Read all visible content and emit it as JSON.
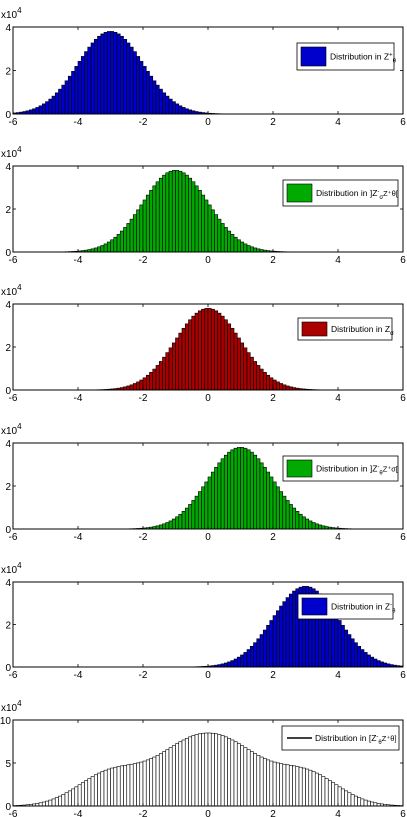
{
  "chart_data": [
    {
      "type": "bar",
      "xlim": [
        -6,
        6
      ],
      "ylim": [
        0,
        40000
      ],
      "x_ticks": [
        "-6",
        "-4",
        "-2",
        "0",
        "2",
        "4",
        "6"
      ],
      "y_ticks": [
        "0",
        "2",
        "4"
      ],
      "y_multiplier": {
        "base": "x10",
        "exponent": "4"
      },
      "legend": {
        "text": "Distribution in Z",
        "sub": "θ",
        "sup": "+",
        "suffix": "",
        "color": "#0000cc"
      },
      "legend_placement": "right",
      "bar_color": "#0000cc",
      "bin_width": 0.1,
      "distribution": {
        "shape": "normal",
        "mean": -3.0,
        "std": 1.0,
        "peak": 38000
      }
    },
    {
      "type": "bar",
      "xlim": [
        -6,
        6
      ],
      "ylim": [
        0,
        40000
      ],
      "x_ticks": [
        "-6",
        "-4",
        "-2",
        "0",
        "2",
        "4",
        "6"
      ],
      "y_ticks": [
        "0",
        "2",
        "4"
      ],
      "y_multiplier": {
        "base": "x10",
        "exponent": "4"
      },
      "legend": {
        "text": "Distribution in ]Z",
        "sub": "σ",
        "sup": "-",
        "suffix": "Z⁺θ[",
        "color": "#00aa00"
      },
      "legend_placement": "right",
      "bar_color": "#00aa00",
      "bin_width": 0.1,
      "distribution": {
        "shape": "normal",
        "mean": -1.0,
        "std": 1.0,
        "peak": 38000
      }
    },
    {
      "type": "bar",
      "xlim": [
        -6,
        6
      ],
      "ylim": [
        0,
        40000
      ],
      "x_ticks": [
        "-6",
        "-4",
        "-2",
        "0",
        "2",
        "4",
        "6"
      ],
      "y_ticks": [
        "0",
        "2",
        "4"
      ],
      "y_multiplier": {
        "base": "x10",
        "exponent": "4"
      },
      "legend": {
        "text": "Distribution in Z",
        "sub": "σ",
        "sup": "",
        "suffix": "",
        "color": "#aa0000"
      },
      "legend_placement": "right",
      "bar_color": "#aa0000",
      "bin_width": 0.1,
      "distribution": {
        "shape": "normal",
        "mean": 0.0,
        "std": 1.0,
        "peak": 38000
      }
    },
    {
      "type": "bar",
      "xlim": [
        -6,
        6
      ],
      "ylim": [
        0,
        40000
      ],
      "x_ticks": [
        "-6",
        "-4",
        "-2",
        "0",
        "2",
        "4",
        "6"
      ],
      "y_ticks": [
        "0",
        "2",
        "4"
      ],
      "y_multiplier": {
        "base": "x10",
        "exponent": "4"
      },
      "legend": {
        "text": "Distribution in ]Z",
        "sub": "θ",
        "sup": "-",
        "suffix": "Z⁺σ[",
        "color": "#00aa00"
      },
      "legend_placement": "right",
      "bar_color": "#00aa00",
      "bin_width": 0.1,
      "distribution": {
        "shape": "normal",
        "mean": 1.0,
        "std": 1.0,
        "peak": 38000
      }
    },
    {
      "type": "bar",
      "xlim": [
        -6,
        6
      ],
      "ylim": [
        0,
        40000
      ],
      "x_ticks": [
        "-6",
        "-4",
        "-2",
        "0",
        "2",
        "4",
        "6"
      ],
      "y_ticks": [
        "0",
        "2",
        "4"
      ],
      "y_multiplier": {
        "base": "x10",
        "exponent": "4"
      },
      "legend": {
        "text": "Distribution in Z",
        "sub": "θ",
        "sup": "-",
        "suffix": "",
        "color": "#0000cc"
      },
      "legend_placement": "right",
      "bar_color": "#0000cc",
      "bin_width": 0.1,
      "distribution": {
        "shape": "normal",
        "mean": 3.0,
        "std": 1.0,
        "peak": 38000
      }
    },
    {
      "type": "bar",
      "xlim": [
        -6,
        6
      ],
      "ylim": [
        0,
        100000
      ],
      "x_ticks": [
        "-6",
        "-4",
        "-2",
        "0",
        "2",
        "4",
        "6"
      ],
      "y_ticks": [
        "0",
        "5",
        "10"
      ],
      "y_multiplier": {
        "base": "x10",
        "exponent": "4"
      },
      "legend": {
        "text": "Distribution in [Z",
        "sub": "θ",
        "sup": "-",
        "suffix": "Z⁺θ]",
        "color": "#000000",
        "line": true
      },
      "legend_placement": "right",
      "bar_color": "#ffffff",
      "bin_width": 0.1,
      "distribution": {
        "shape": "sum",
        "components": [
          {
            "mean": -3.0,
            "std": 1.0,
            "peak": 38000
          },
          {
            "mean": -1.0,
            "std": 1.0,
            "peak": 38000
          },
          {
            "mean": 0.0,
            "std": 1.0,
            "peak": 38000
          },
          {
            "mean": 1.0,
            "std": 1.0,
            "peak": 38000
          },
          {
            "mean": 3.0,
            "std": 1.0,
            "peak": 38000
          }
        ]
      }
    }
  ]
}
